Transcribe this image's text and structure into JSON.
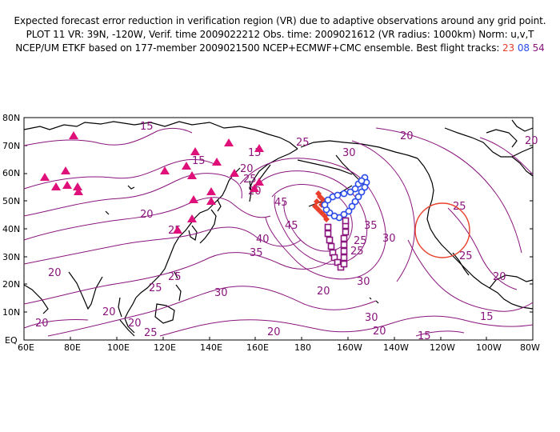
{
  "header": {
    "line1": "Expected forecast error reduction in verification region (VR) due to adaptive observations around any grid point.",
    "line2": "PLOT 11 VR: 39N, -120W, Verif. time 2009022212 Obs. time: 2009021612 (VR radius: 1000km) Norm: u,v,T",
    "line3_prefix": "NCEP/UM ETKF based on 177-member 2009021500 NCEP+ECMWF+CMC ensemble. Best flight tracks:",
    "tracks": [
      {
        "id": "23",
        "color": "#e8402a"
      },
      {
        "id": "08",
        "color": "#2a4be8"
      },
      {
        "id": "54",
        "color": "#8a157d"
      }
    ]
  },
  "map": {
    "lat_labels": [
      "80N",
      "70N",
      "60N",
      "50N",
      "40N",
      "30N",
      "20N",
      "10N",
      "EQ"
    ],
    "lon_labels": [
      "60E",
      "80E",
      "100E",
      "120E",
      "140E",
      "160E",
      "180",
      "160W",
      "140W",
      "120W",
      "100W",
      "80W"
    ],
    "contour_color": "#8a157d",
    "contour_labels": [
      "15",
      "15",
      "20",
      "25",
      "20",
      "25",
      "20",
      "15",
      "30",
      "25",
      "20",
      "25",
      "45",
      "45",
      "40",
      "35",
      "35",
      "25",
      "30",
      "30",
      "25",
      "20",
      "20",
      "20",
      "25",
      "25",
      "30",
      "20",
      "20",
      "20",
      "25",
      "20",
      "30",
      "20",
      "15",
      "15",
      "25",
      "20"
    ],
    "markers": {
      "triangle_color": "#e0107a",
      "verification_region_color": "#e8402a"
    }
  }
}
